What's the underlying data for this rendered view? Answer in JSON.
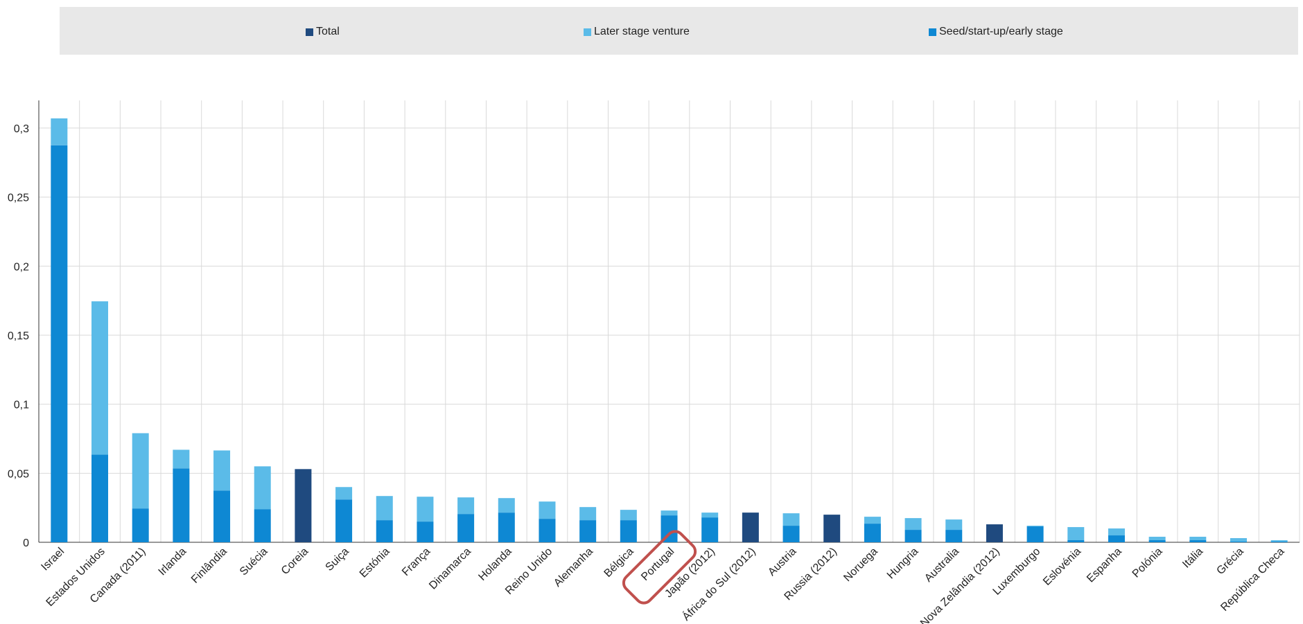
{
  "legend": {
    "total_label": "Total",
    "later_label": "Later stage venture",
    "seed_label": "Seed/start-up/early stage"
  },
  "colors": {
    "total": "#1f4a7f",
    "later": "#5bbbe8",
    "seed": "#0e88d3",
    "highlight": "#c0504d"
  },
  "chart_data": {
    "type": "bar",
    "stacked": true,
    "title": "",
    "xlabel": "",
    "ylabel": "",
    "ylim": [
      0,
      0.32
    ],
    "yticks": [
      0,
      0.05,
      0.1,
      0.15,
      0.2,
      0.25,
      0.3
    ],
    "ytick_labels": [
      "0",
      "0,05",
      "0,1",
      "0,15",
      "0,2",
      "0,25",
      "0,3"
    ],
    "grid": true,
    "legend_position": "top",
    "highlighted_category": "Portugal",
    "categories": [
      "Israel",
      "Estados Unidos",
      "Canada (2011)",
      "Irlanda",
      "Finlândia",
      "Suécia",
      "Coreia",
      "Suiça",
      "Estónia",
      "França",
      "Dinamarca",
      "Holanda",
      "Reino Unido",
      "Alemanha",
      "Bélgica",
      "Portugal",
      "Japão (2012)",
      "África do Sul (2012)",
      "Austria",
      "Russia (2012)",
      "Noruega",
      "Hungria",
      "Australia",
      "Nova Zelândia (2012)",
      "Luxemburgo",
      "Eslovénia",
      "Espanha",
      "Polónia",
      "Itália",
      "Grécia",
      "República Checa"
    ],
    "series": [
      {
        "name": "Total",
        "values": [
          null,
          null,
          null,
          null,
          null,
          null,
          0.053,
          null,
          null,
          null,
          null,
          null,
          null,
          null,
          null,
          null,
          null,
          0.0215,
          null,
          0.02,
          null,
          null,
          null,
          0.013,
          null,
          null,
          null,
          null,
          null,
          null,
          null
        ]
      },
      {
        "name": "Later stage venture",
        "values": [
          0.0195,
          0.111,
          0.0545,
          0.0135,
          0.029,
          0.031,
          null,
          0.009,
          0.0175,
          0.018,
          0.012,
          0.0105,
          0.0125,
          0.0095,
          0.0075,
          0.0035,
          0.0035,
          null,
          0.009,
          null,
          0.005,
          0.0085,
          0.0075,
          null,
          0.0005,
          0.0095,
          0.005,
          0.0025,
          0.0025,
          0.0025,
          0.001
        ]
      },
      {
        "name": "Seed/start-up/early stage",
        "values": [
          0.2875,
          0.0635,
          0.0245,
          0.0535,
          0.0375,
          0.024,
          null,
          0.031,
          0.016,
          0.015,
          0.0205,
          0.0215,
          0.017,
          0.016,
          0.016,
          0.0195,
          0.018,
          null,
          0.012,
          null,
          0.0135,
          0.009,
          0.009,
          null,
          0.0115,
          0.0015,
          0.005,
          0.0015,
          0.0015,
          0.0005,
          0.0005
        ]
      }
    ]
  }
}
